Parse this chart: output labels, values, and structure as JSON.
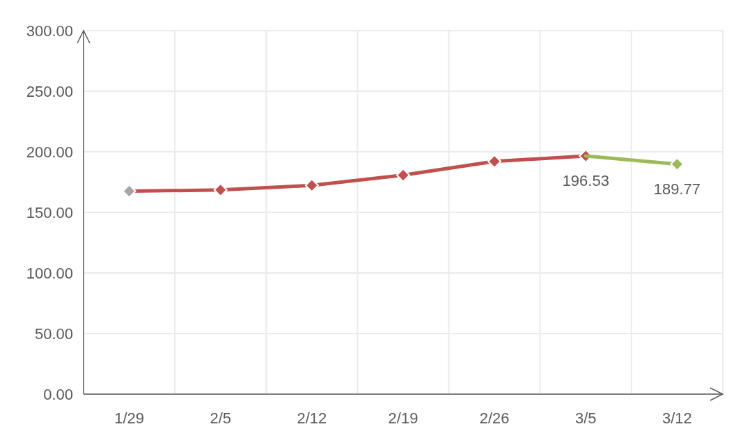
{
  "chart_data": {
    "type": "line",
    "categories": [
      "1/29",
      "2/5",
      "2/12",
      "2/19",
      "2/26",
      "3/5",
      "3/12"
    ],
    "series": [
      {
        "color": "#c0504d",
        "values": [
          167.5,
          168.5,
          172.3,
          180.7,
          192.1,
          196.53,
          null
        ],
        "colors": [
          "#a5a5a5",
          "#c0504d",
          "#c0504d",
          "#c0504d",
          "#c0504d",
          "#c0504d",
          null
        ],
        "value_labels": [
          null,
          null,
          null,
          null,
          null,
          "196.53",
          null
        ]
      },
      {
        "color": "#9bbb59",
        "values": [
          null,
          null,
          null,
          null,
          null,
          196.53,
          189.77
        ],
        "colors": [
          null,
          null,
          null,
          null,
          null,
          null,
          "#9bbb59"
        ],
        "value_labels": [
          null,
          null,
          null,
          null,
          null,
          null,
          "189.77"
        ]
      }
    ],
    "ylim": [
      0,
      300
    ],
    "yticks": [
      {
        "value": 0,
        "label": "0.00"
      },
      {
        "value": 50,
        "label": "50.00"
      },
      {
        "value": 100,
        "label": "100.00"
      },
      {
        "value": 150,
        "label": "150.00"
      },
      {
        "value": 200,
        "label": "200.00"
      },
      {
        "value": 250,
        "label": "250.00"
      },
      {
        "value": 300,
        "label": "300.00"
      }
    ],
    "grid": true,
    "marker": "diamond",
    "line_style": "solid"
  }
}
